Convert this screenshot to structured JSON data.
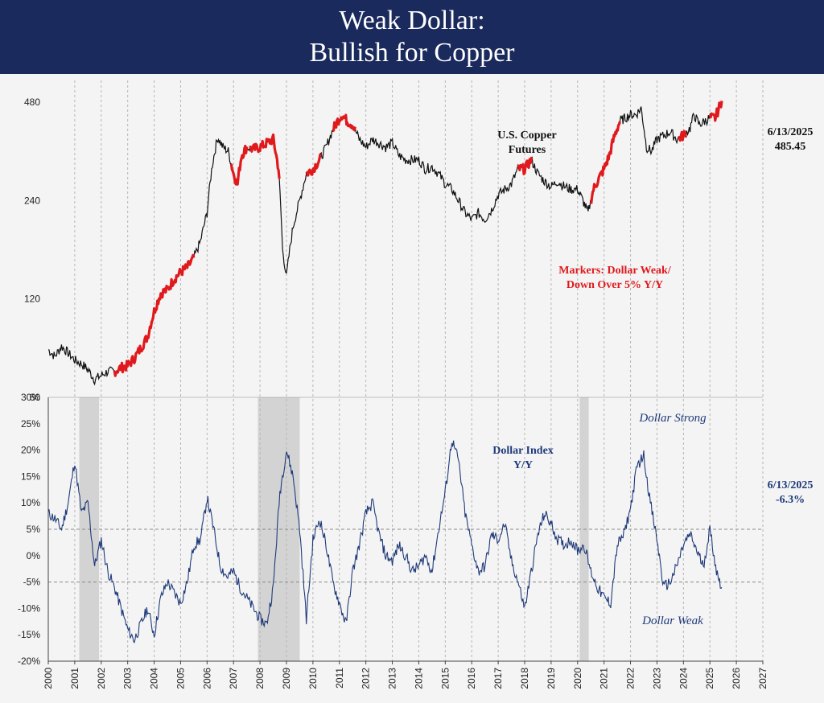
{
  "title_line1": "Weak Dollar:",
  "title_line2": "Bullish for Copper",
  "colors": {
    "header": "#1a2a5c",
    "copper": "#111111",
    "marker": "#e0191c",
    "dollar": "#1f3a7a",
    "recession": "#d3d3d3"
  },
  "chart_data": [
    {
      "type": "line",
      "name": "top-panel",
      "title": "U.S. Copper Futures",
      "title_line1": "U.S. Copper",
      "title_line2": "Futures",
      "scale": "log",
      "y_ticks": [
        60,
        120,
        240,
        480
      ],
      "y_tick_labels": [
        "60",
        "120",
        "240",
        "480"
      ],
      "ylim": [
        60,
        560
      ],
      "latest_date": "6/13/2025",
      "latest_value": "485.45",
      "marker_note_line1": "Markers: Dollar Weak/",
      "marker_note_line2": "Down Over 5% Y/Y",
      "series": [
        {
          "name": "U.S. Copper Futures",
          "x": [
            2000.0,
            2000.25,
            2000.5,
            2000.75,
            2001.0,
            2001.25,
            2001.5,
            2001.75,
            2002.0,
            2002.25,
            2002.5,
            2002.75,
            2003.0,
            2003.25,
            2003.5,
            2003.75,
            2004.0,
            2004.25,
            2004.5,
            2004.75,
            2005.0,
            2005.25,
            2005.5,
            2005.75,
            2006.0,
            2006.2,
            2006.4,
            2006.6,
            2006.8,
            2007.0,
            2007.15,
            2007.3,
            2007.5,
            2007.75,
            2008.0,
            2008.25,
            2008.5,
            2008.7,
            2008.85,
            2009.0,
            2009.25,
            2009.5,
            2009.75,
            2010.0,
            2010.25,
            2010.5,
            2010.75,
            2011.0,
            2011.1,
            2011.3,
            2011.5,
            2011.75,
            2012.0,
            2012.25,
            2012.5,
            2012.75,
            2013.0,
            2013.25,
            2013.5,
            2013.75,
            2014.0,
            2014.25,
            2014.5,
            2014.75,
            2015.0,
            2015.25,
            2015.5,
            2015.75,
            2016.0,
            2016.25,
            2016.5,
            2016.75,
            2017.0,
            2017.25,
            2017.5,
            2017.75,
            2018.0,
            2018.25,
            2018.5,
            2018.75,
            2019.0,
            2019.25,
            2019.5,
            2019.75,
            2020.0,
            2020.2,
            2020.4,
            2020.6,
            2020.8,
            2021.0,
            2021.2,
            2021.4,
            2021.6,
            2021.8,
            2022.0,
            2022.2,
            2022.4,
            2022.6,
            2022.8,
            2023.0,
            2023.25,
            2023.5,
            2023.75,
            2024.0,
            2024.25,
            2024.4,
            2024.6,
            2024.8,
            2025.0,
            2025.2,
            2025.45
          ],
          "values": [
            84,
            80,
            86,
            82,
            78,
            76,
            73,
            68,
            70,
            72,
            72,
            74,
            75,
            79,
            85,
            92,
            110,
            125,
            128,
            138,
            145,
            150,
            160,
            180,
            220,
            310,
            375,
            350,
            340,
            290,
            270,
            330,
            350,
            345,
            350,
            360,
            370,
            300,
            170,
            140,
            200,
            240,
            290,
            300,
            320,
            350,
            395,
            430,
            440,
            420,
            410,
            370,
            350,
            370,
            360,
            350,
            360,
            330,
            320,
            320,
            320,
            300,
            305,
            290,
            270,
            260,
            240,
            220,
            210,
            220,
            210,
            225,
            250,
            260,
            270,
            300,
            300,
            320,
            290,
            275,
            265,
            275,
            265,
            260,
            260,
            240,
            220,
            260,
            280,
            300,
            330,
            380,
            420,
            430,
            440,
            440,
            460,
            350,
            340,
            370,
            380,
            390,
            370,
            380,
            400,
            440,
            410,
            420,
            430,
            430,
            485
          ]
        }
      ]
    },
    {
      "type": "line",
      "name": "bottom-panel",
      "title": "Dollar Index Y/Y",
      "title_line1": "Dollar Index",
      "title_line2": "Y/Y",
      "ylim": [
        -20,
        30
      ],
      "y_ticks": [
        -20,
        -15,
        -10,
        -5,
        0,
        5,
        10,
        15,
        20,
        25,
        30
      ],
      "y_tick_labels": [
        "-20%",
        "-15%",
        "-10%",
        "-5%",
        "0%",
        "5%",
        "10%",
        "15%",
        "20%",
        "25%",
        "30%"
      ],
      "reference_lines": [
        5,
        -5
      ],
      "recessions": [
        [
          2001.17,
          2001.92
        ],
        [
          2007.92,
          2009.5
        ],
        [
          2020.08,
          2020.42
        ]
      ],
      "label_strong": "Dollar Strong",
      "label_weak": "Dollar Weak",
      "latest_date": "6/13/2025",
      "latest_value": "-6.3%",
      "series": [
        {
          "name": "Dollar Index Y/Y",
          "x": [
            2000.0,
            2000.25,
            2000.5,
            2000.75,
            2001.0,
            2001.25,
            2001.5,
            2001.75,
            2002.0,
            2002.25,
            2002.5,
            2002.75,
            2003.0,
            2003.25,
            2003.5,
            2003.75,
            2004.0,
            2004.25,
            2004.5,
            2004.75,
            2005.0,
            2005.25,
            2005.5,
            2005.75,
            2006.0,
            2006.25,
            2006.5,
            2006.75,
            2007.0,
            2007.25,
            2007.5,
            2007.75,
            2008.0,
            2008.25,
            2008.5,
            2008.75,
            2009.0,
            2009.25,
            2009.5,
            2009.75,
            2010.0,
            2010.25,
            2010.5,
            2010.75,
            2011.0,
            2011.25,
            2011.5,
            2011.75,
            2012.0,
            2012.25,
            2012.5,
            2012.75,
            2013.0,
            2013.25,
            2013.5,
            2013.75,
            2014.0,
            2014.25,
            2014.5,
            2014.75,
            2015.0,
            2015.25,
            2015.5,
            2015.75,
            2016.0,
            2016.25,
            2016.5,
            2016.75,
            2017.0,
            2017.25,
            2017.5,
            2017.75,
            2018.0,
            2018.25,
            2018.5,
            2018.75,
            2019.0,
            2019.25,
            2019.5,
            2019.75,
            2020.0,
            2020.25,
            2020.5,
            2020.75,
            2021.0,
            2021.25,
            2021.5,
            2021.75,
            2022.0,
            2022.25,
            2022.5,
            2022.75,
            2023.0,
            2023.25,
            2023.5,
            2023.75,
            2024.0,
            2024.25,
            2024.5,
            2024.75,
            2025.0,
            2025.25,
            2025.45
          ],
          "values": [
            8,
            7,
            5,
            10,
            18,
            8,
            10,
            -2,
            3,
            -3,
            -6,
            -10,
            -14,
            -16,
            -13,
            -10,
            -15,
            -8,
            -5,
            -7,
            -9,
            -5,
            2,
            3,
            11,
            5,
            -2,
            -4,
            -3,
            -6,
            -8,
            -10,
            -12,
            -13,
            -6,
            12,
            20,
            15,
            5,
            -12,
            3,
            7,
            2,
            -5,
            -9,
            -13,
            -3,
            2,
            8,
            10,
            4,
            0,
            -1,
            2,
            0,
            -3,
            -2,
            0,
            -3,
            5,
            12,
            22,
            18,
            8,
            2,
            -3,
            -2,
            4,
            3,
            6,
            -1,
            -5,
            -10,
            -3,
            4,
            8,
            6,
            3,
            2,
            3,
            1,
            2,
            -3,
            -6,
            -8,
            -9,
            2,
            4,
            9,
            17,
            19,
            10,
            3,
            -6,
            -5,
            -2,
            2,
            4,
            1,
            -2,
            5,
            -3,
            -6
          ]
        }
      ]
    }
  ],
  "x_axis": {
    "ticks": [
      2000,
      2001,
      2002,
      2003,
      2004,
      2005,
      2006,
      2007,
      2008,
      2009,
      2010,
      2011,
      2012,
      2013,
      2014,
      2015,
      2016,
      2017,
      2018,
      2019,
      2020,
      2021,
      2022,
      2023,
      2024,
      2025,
      2026,
      2027
    ],
    "labels": [
      "2000",
      "2001",
      "2002",
      "2003",
      "2004",
      "2005",
      "2006",
      "2007",
      "2008",
      "2009",
      "2010",
      "2011",
      "2012",
      "2013",
      "2014",
      "2015",
      "2016",
      "2017",
      "2018",
      "2019",
      "2020",
      "2021",
      "2022",
      "2023",
      "2024",
      "2025",
      "2026",
      "2027"
    ]
  },
  "weak_periods": [
    [
      2002.5,
      2005.5
    ],
    [
      2006.9,
      2007.5
    ],
    [
      2007.6,
      2008.75
    ],
    [
      2009.75,
      2010.3
    ],
    [
      2010.75,
      2011.6
    ],
    [
      2017.75,
      2018.3
    ],
    [
      2020.5,
      2021.6
    ],
    [
      2023.8,
      2024.1
    ],
    [
      2025.0,
      2025.45
    ]
  ]
}
